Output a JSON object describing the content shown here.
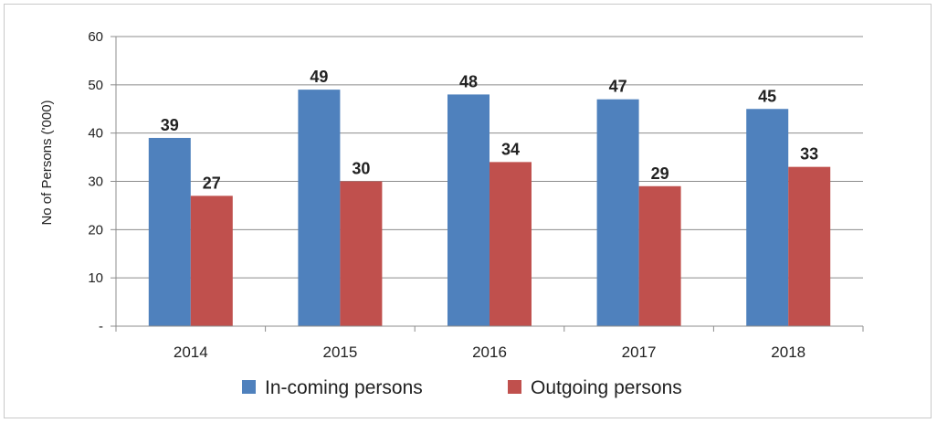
{
  "chart_data": {
    "type": "bar",
    "title": "",
    "xlabel": "",
    "ylabel": "No of Persons ('000)",
    "categories": [
      "2014",
      "2015",
      "2016",
      "2017",
      "2018"
    ],
    "series": [
      {
        "name": "In-coming persons",
        "color": "#4f81bd",
        "values": [
          39,
          49,
          48,
          47,
          45
        ]
      },
      {
        "name": "Outgoing persons",
        "color": "#c0504d",
        "values": [
          27,
          30,
          34,
          29,
          33
        ]
      }
    ],
    "ylim": [
      0,
      60
    ],
    "yticks": [
      0,
      10,
      20,
      30,
      40,
      50,
      60
    ],
    "ytick_labels": [
      "-",
      "10",
      "20",
      "30",
      "40",
      "50",
      "60"
    ],
    "grid": true,
    "legend_position": "bottom"
  }
}
